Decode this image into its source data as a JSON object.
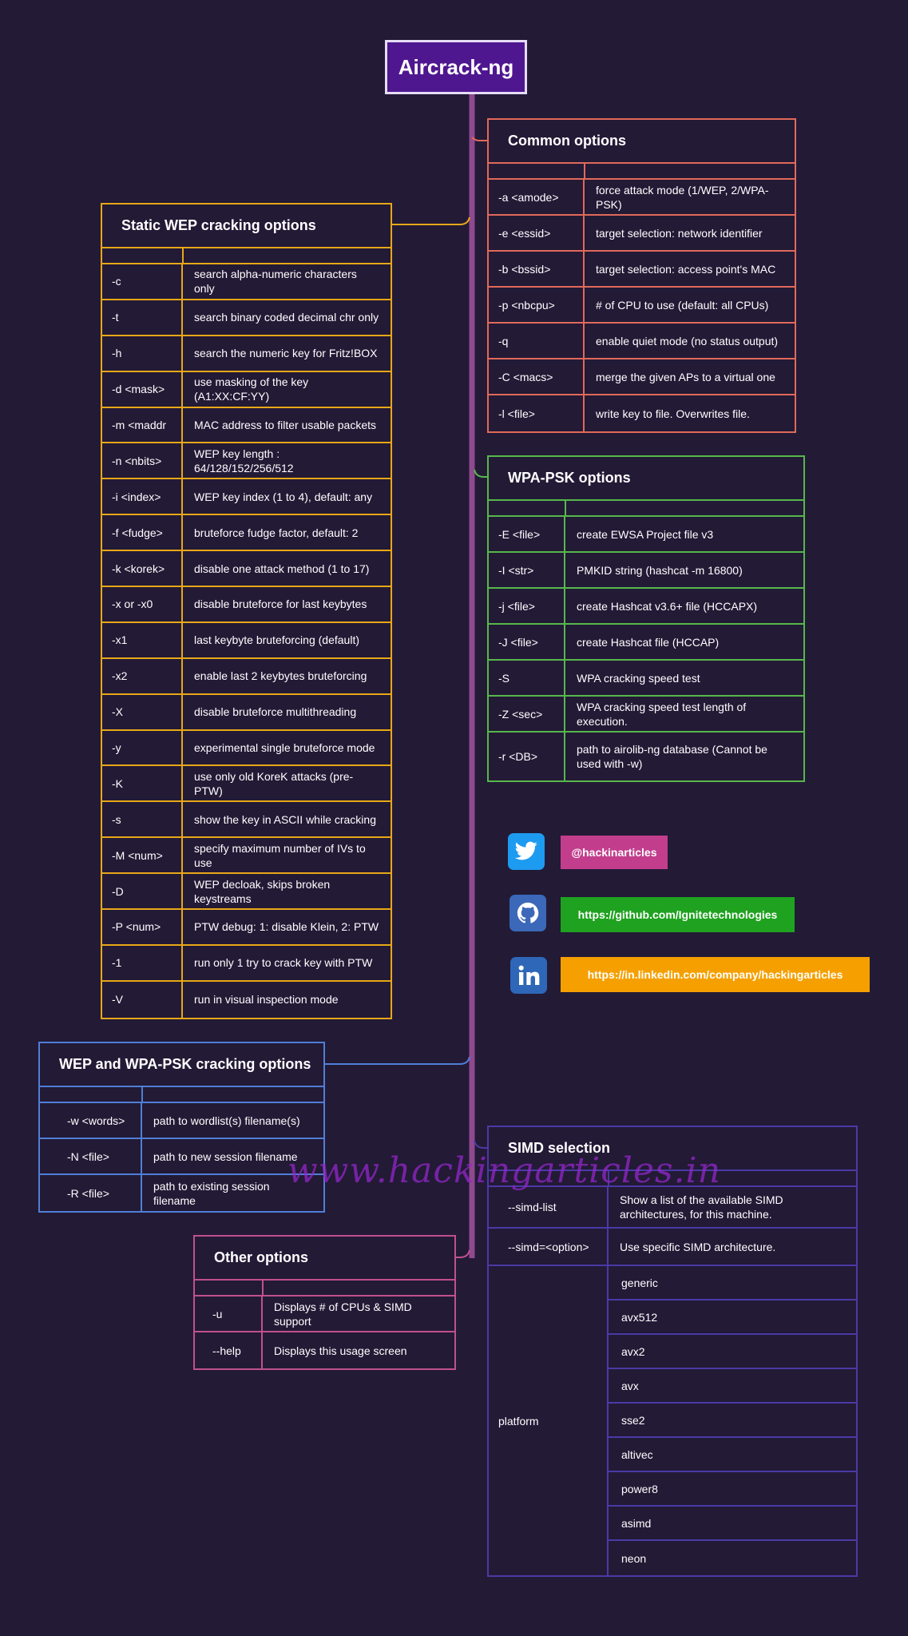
{
  "title": "Aircrack-ng",
  "watermark": "www.hackingarticles.in",
  "colors": {
    "background": "#231a36",
    "root": "#4f178f",
    "spine": "#8f4a8f",
    "wep": "#e8a817",
    "common": "#e06a5a",
    "wpa": "#56b84a",
    "wepwpa": "#4f7fd6",
    "other": "#c0508f",
    "simd": "#4a3aa6"
  },
  "common": {
    "title": "Common options",
    "rows": [
      {
        "opt": "-a <amode>",
        "desc": "force attack mode (1/WEP, 2/WPA-PSK)"
      },
      {
        "opt": "-e <essid>",
        "desc": "target selection: network identifier"
      },
      {
        "opt": "-b <bssid>",
        "desc": "target selection: access point's MAC"
      },
      {
        "opt": "-p <nbcpu>",
        "desc": " # of CPU to use  (default: all CPUs)"
      },
      {
        "opt": "-q",
        "desc": "enable quiet mode (no status output)"
      },
      {
        "opt": "-C <macs>",
        "desc": "merge the given APs to a virtual one"
      },
      {
        "opt": "-l <file>",
        "desc": " write key to file. Overwrites file."
      }
    ]
  },
  "wep": {
    "title": "Static WEP cracking options",
    "rows": [
      {
        "opt": "-c",
        "desc": "search alpha-numeric characters only"
      },
      {
        "opt": "-t",
        "desc": "search binary coded decimal chr only"
      },
      {
        "opt": "-h",
        "desc": "search the numeric key for Fritz!BOX"
      },
      {
        "opt": "-d <mask>",
        "desc": "use masking of the key (A1:XX:CF:YY)"
      },
      {
        "opt": "-m <maddr",
        "desc": "MAC address to filter usable packets"
      },
      {
        "opt": "-n <nbits>",
        "desc": "WEP key length :  64/128/152/256/512"
      },
      {
        "opt": "-i <index>",
        "desc": "WEP key index (1 to 4), default: any"
      },
      {
        "opt": "-f <fudge>",
        "desc": "bruteforce fudge factor,  default: 2"
      },
      {
        "opt": "-k <korek>",
        "desc": "disable one attack method  (1 to 17)"
      },
      {
        "opt": "-x or -x0",
        "desc": "disable bruteforce for last keybytes"
      },
      {
        "opt": "-x1",
        "desc": "last keybyte bruteforcing  (default)"
      },
      {
        "opt": "-x2",
        "desc": "enable last  2 keybytes bruteforcing"
      },
      {
        "opt": "-X",
        "desc": "disable  bruteforce   multithreading"
      },
      {
        "opt": "-y",
        "desc": "experimental  single bruteforce mode"
      },
      {
        "opt": "-K",
        "desc": "use only old KoreK attacks (pre-PTW)"
      },
      {
        "opt": "-s",
        "desc": "show the key in ASCII while cracking"
      },
      {
        "opt": "-M <num>",
        "desc": "specify maximum number of IVs to use"
      },
      {
        "opt": "-D",
        "desc": "WEP decloak, skips broken keystreams"
      },
      {
        "opt": "-P <num>",
        "desc": "PTW debug:  1: disable Klein, 2: PTW"
      },
      {
        "opt": "-1",
        "desc": "run only 1 try to crack key with PTW"
      },
      {
        "opt": "-V",
        "desc": "run in visual inspection mode"
      }
    ]
  },
  "wpa": {
    "title": "WPA-PSK options",
    "rows": [
      {
        "opt": "-E <file>",
        "desc": "create EWSA Project file v3"
      },
      {
        "opt": "-I <str>",
        "desc": "PMKID string (hashcat -m 16800)"
      },
      {
        "opt": "-j <file>",
        "desc": "create Hashcat v3.6+ file (HCCAPX)"
      },
      {
        "opt": "-J <file>",
        "desc": "create Hashcat file (HCCAP)"
      },
      {
        "opt": "-S",
        "desc": "WPA cracking speed test"
      },
      {
        "opt": "-Z <sec>",
        "desc": "WPA cracking speed test length of execution."
      },
      {
        "opt": "-r <DB>",
        "desc": "path to airolib-ng database (Cannot be used with -w)"
      }
    ]
  },
  "wepwpa": {
    "title": "WEP and WPA-PSK cracking options",
    "rows": [
      {
        "opt": "-w <words>",
        "desc": "path to wordlist(s) filename(s)"
      },
      {
        "opt": "-N <file>",
        "desc": "path to new session filename"
      },
      {
        "opt": "-R <file>",
        "desc": "path to existing session filename"
      }
    ]
  },
  "other": {
    "title": "Other options",
    "rows": [
      {
        "opt": "-u",
        "desc": "Displays # of CPUs & SIMD support"
      },
      {
        "opt": "--help",
        "desc": "Displays this usage screen"
      }
    ]
  },
  "simd": {
    "title": "SIMD selection",
    "rows": [
      {
        "opt": "--simd-list",
        "desc": "Show a list of the available SIMD architectures, for this machine."
      },
      {
        "opt": "--simd=<option>",
        "desc": "Use specific SIMD architecture."
      }
    ],
    "platform_label": "platform",
    "platforms": [
      "generic",
      "avx512",
      "avx2",
      "avx",
      "sse2",
      "altivec",
      "power8",
      "asimd",
      "neon"
    ]
  },
  "social": [
    {
      "icon": "twitter-icon",
      "label": "@hackinarticles",
      "color": "#c23e8c"
    },
    {
      "icon": "github-icon",
      "label": "https://github.com/Ignitetechnologies",
      "color": "#1fa21f"
    },
    {
      "icon": "linkedin-icon",
      "label": "https://in.linkedin.com/company/hackingarticles",
      "color": "#f5a000"
    }
  ]
}
